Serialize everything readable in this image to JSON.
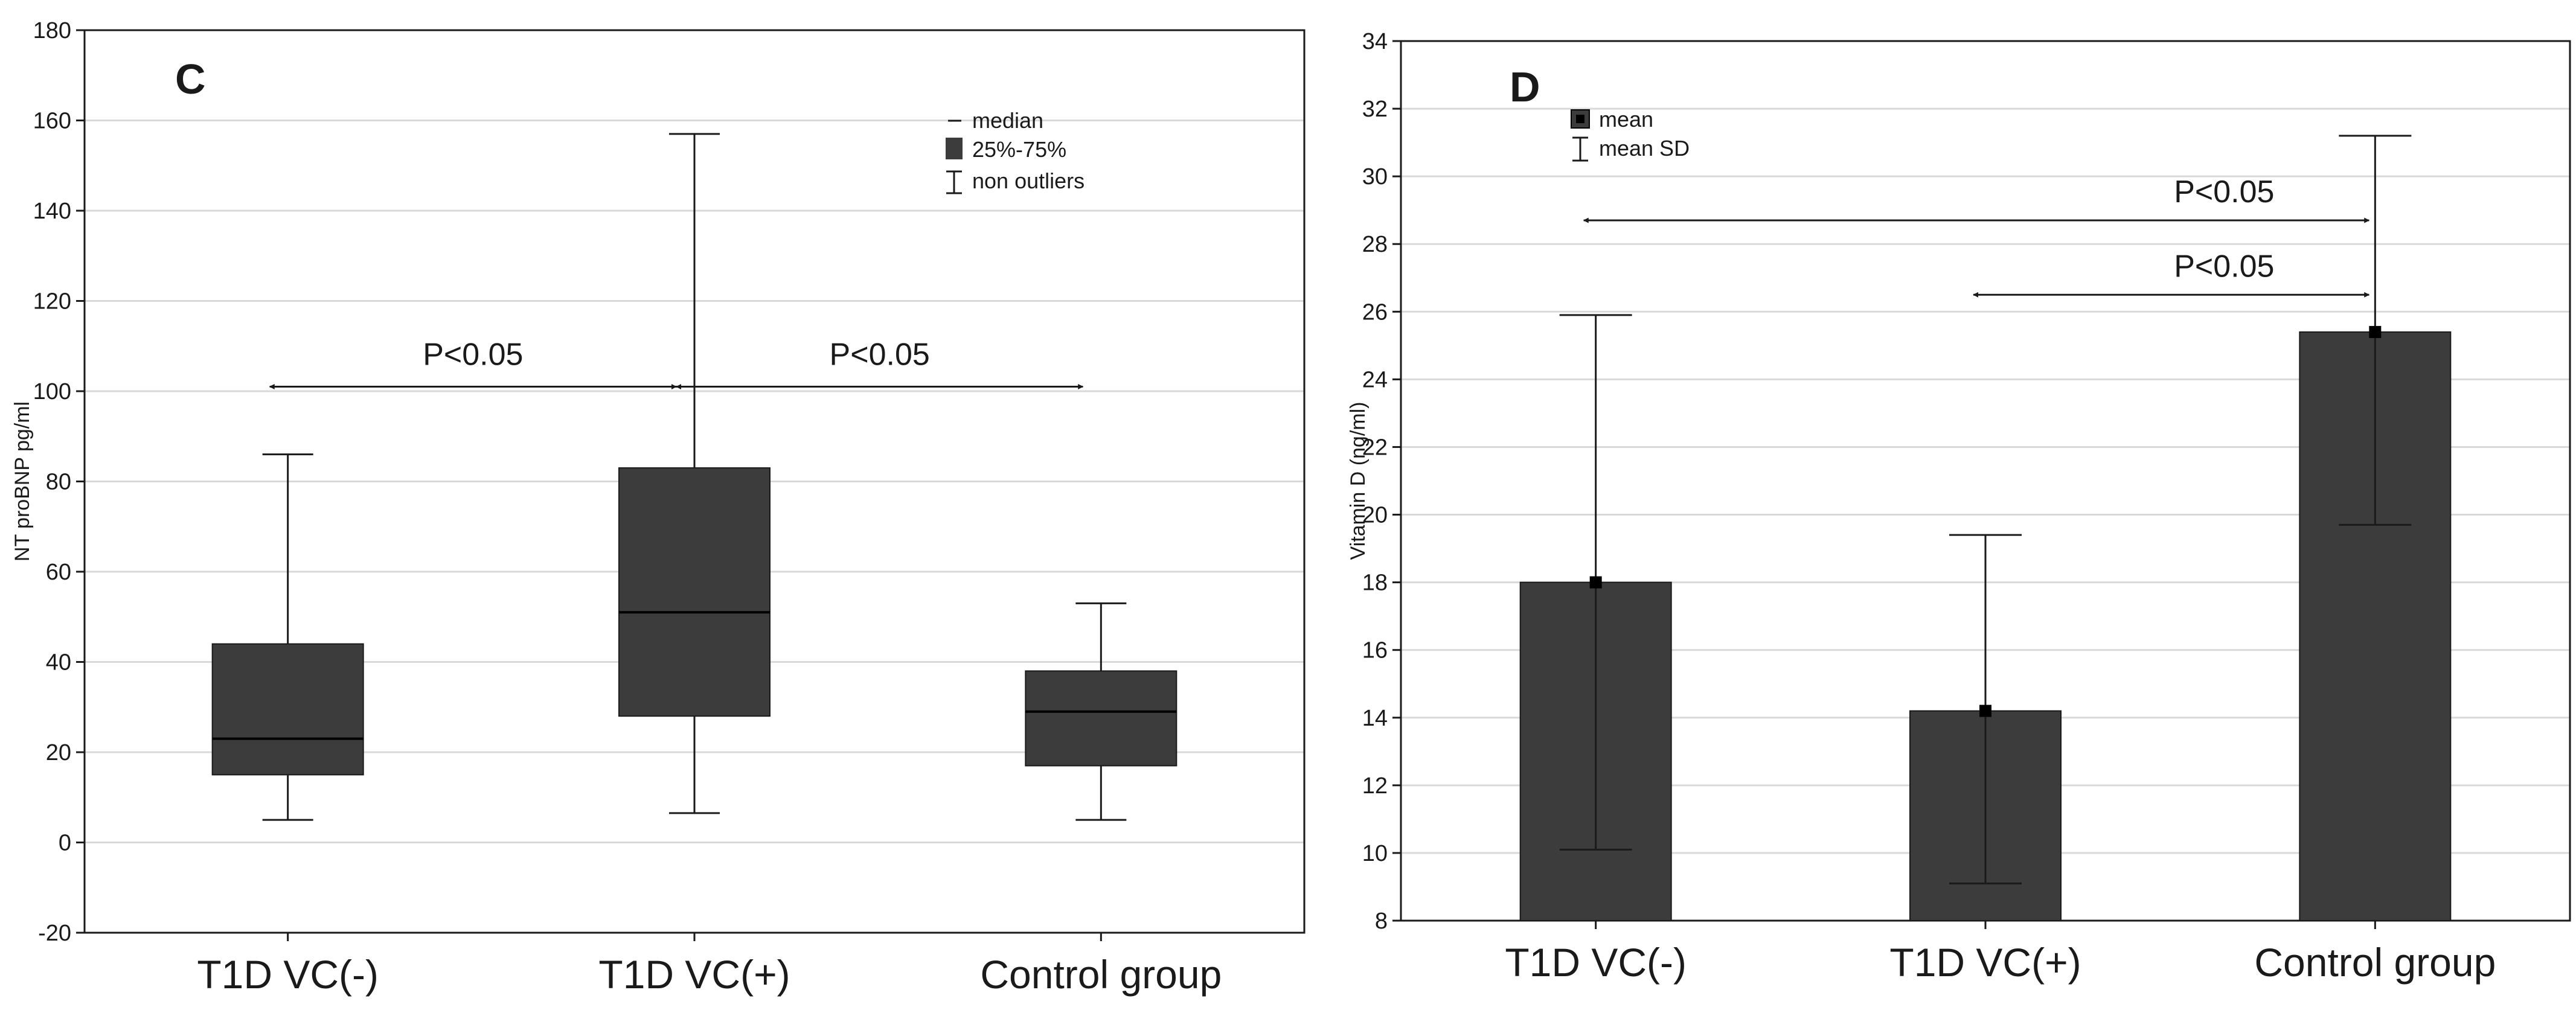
{
  "chart_data": [
    {
      "type": "box",
      "panel_label": "C",
      "title": "",
      "xlabel": "",
      "ylabel": "NT proBNP pg/ml",
      "ylim": [
        -20,
        180
      ],
      "y_ticks": [
        -20,
        0,
        20,
        40,
        60,
        80,
        100,
        120,
        140,
        160,
        180
      ],
      "grid": true,
      "categories": [
        "T1D VC(-)",
        "T1D VC(+)",
        "Control group"
      ],
      "boxes": [
        {
          "min": 5,
          "q1": 15,
          "median": 23,
          "q3": 44,
          "max": 86
        },
        {
          "min": 6.5,
          "q1": 28,
          "median": 51,
          "q3": 83,
          "max": 157
        },
        {
          "min": 5,
          "q1": 17,
          "median": 29,
          "q3": 38,
          "max": 53
        }
      ],
      "legend": {
        "placement": "top-right",
        "items": [
          "median",
          "25%-75%",
          "non outliers"
        ]
      },
      "annotations": [
        {
          "text": "P<0.05",
          "from_category": 0,
          "to_category": 1,
          "y": 101
        },
        {
          "text": "P<0.05",
          "from_category": 1,
          "to_category": 2,
          "y": 101
        }
      ],
      "colors": {
        "fill": "#3c3c3c",
        "line": "#1a1a1a",
        "grid": "#d9d9d9"
      }
    },
    {
      "type": "bar",
      "panel_label": "D",
      "title": "",
      "xlabel": "",
      "ylabel": "Vitamin D (ng/ml)",
      "ylim": [
        8,
        34
      ],
      "y_ticks": [
        8,
        10,
        12,
        14,
        16,
        18,
        20,
        22,
        24,
        26,
        28,
        30,
        32,
        34
      ],
      "grid": true,
      "categories": [
        "T1D VC(-)",
        "T1D VC(+)",
        "Control group"
      ],
      "values": [
        18,
        14.2,
        25.4
      ],
      "error_low": [
        10.1,
        9.1,
        19.7
      ],
      "error_high": [
        25.9,
        19.4,
        31.2
      ],
      "legend": {
        "placement": "top-left",
        "items": [
          "mean",
          "mean SD"
        ]
      },
      "annotations": [
        {
          "text": "P<0.05",
          "from_category": 0,
          "to_category": 2,
          "y": 28.7
        },
        {
          "text": "P<0.05",
          "from_category": 1,
          "to_category": 2,
          "y": 26.5
        }
      ],
      "colors": {
        "fill": "#3c3c3c",
        "line": "#1a1a1a",
        "grid": "#d9d9d9"
      }
    }
  ]
}
